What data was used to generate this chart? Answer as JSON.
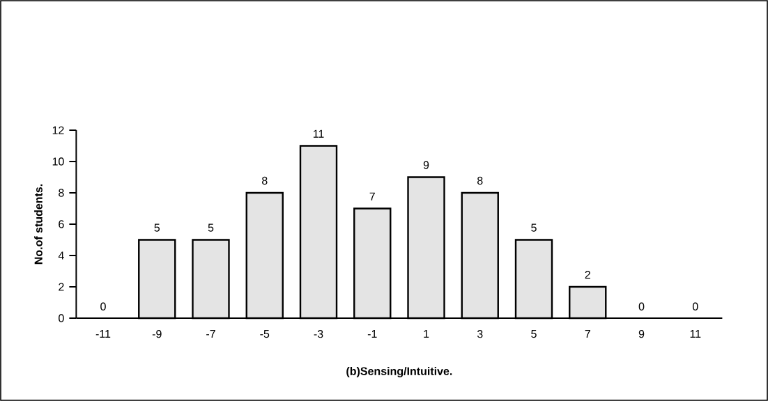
{
  "chart_data": {
    "type": "bar",
    "xlabel": "(b)Sensing/Intuitive.",
    "ylabel": "No.of students.",
    "categories": [
      "-11",
      "-9",
      "-7",
      "-5",
      "-3",
      "-1",
      "1",
      "3",
      "5",
      "7",
      "9",
      "11"
    ],
    "values": [
      0,
      5,
      5,
      8,
      11,
      7,
      9,
      8,
      5,
      2,
      0,
      0
    ],
    "color": "#e4e4e4",
    "ylim": [
      0,
      12
    ],
    "yticks": [
      0,
      2,
      4,
      6,
      8,
      10,
      12
    ],
    "data_labels": true
  }
}
